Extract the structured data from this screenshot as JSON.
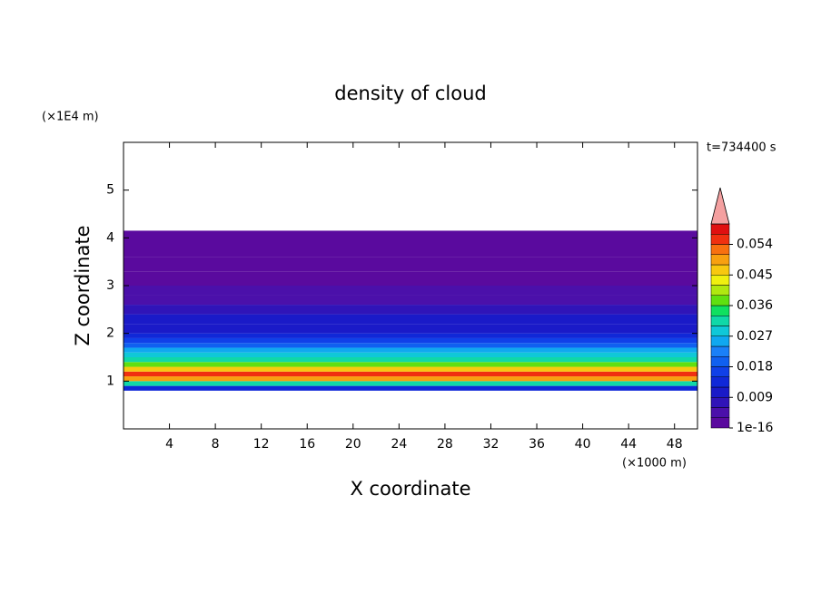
{
  "chart_data": {
    "type": "contour",
    "title": "density of cloud",
    "y_unit": "(×1E4 m)",
    "x_unit": "(×1000 m)",
    "time_label": "t=734400 s",
    "xlabel": "X coordinate",
    "ylabel": "Z coordinate",
    "xlim": [
      0,
      50
    ],
    "xticks": [
      4,
      8,
      12,
      16,
      20,
      24,
      28,
      32,
      36,
      40,
      44,
      48
    ],
    "ylim": [
      0,
      6
    ],
    "yticks": [
      1,
      2,
      3,
      4,
      5
    ],
    "z_edges": [
      0.8,
      0.9,
      1.0,
      1.1,
      1.2,
      1.3,
      1.4,
      1.5,
      1.6,
      1.7,
      1.8,
      1.9,
      2.0,
      2.2,
      2.4,
      2.6,
      2.8,
      3.0,
      3.3,
      3.6,
      4.15
    ],
    "values": [
      0.012,
      0.03,
      0.05,
      0.055,
      0.045,
      0.036,
      0.03,
      0.027,
      0.024,
      0.018,
      0.015,
      0.012,
      0.01,
      0.009,
      0.006,
      0.004,
      0.003,
      0.002,
      0.001,
      0.0005
    ],
    "colorbar": {
      "levels": [
        1e-16,
        0.003,
        0.006,
        0.009,
        0.012,
        0.015,
        0.018,
        0.021,
        0.024,
        0.027,
        0.03,
        0.033,
        0.036,
        0.039,
        0.042,
        0.045,
        0.048,
        0.051,
        0.054,
        0.057,
        0.06
      ],
      "colors": [
        "#5a0a9e",
        "#4b10aa",
        "#3014b8",
        "#1a1ac8",
        "#1028d8",
        "#1040e8",
        "#1060f0",
        "#1a80f8",
        "#10a8f0",
        "#10c8d8",
        "#10d8a8",
        "#10e060",
        "#60e010",
        "#b0e810",
        "#f0f010",
        "#f8c810",
        "#f8a010",
        "#f87010",
        "#f03010",
        "#e01010"
      ],
      "extend_color": "#f4a0a0",
      "ticks": [
        {
          "value": 1e-16,
          "label": "1e-16"
        },
        0.009,
        0.018,
        0.027,
        0.036,
        0.045,
        0.054
      ]
    }
  }
}
